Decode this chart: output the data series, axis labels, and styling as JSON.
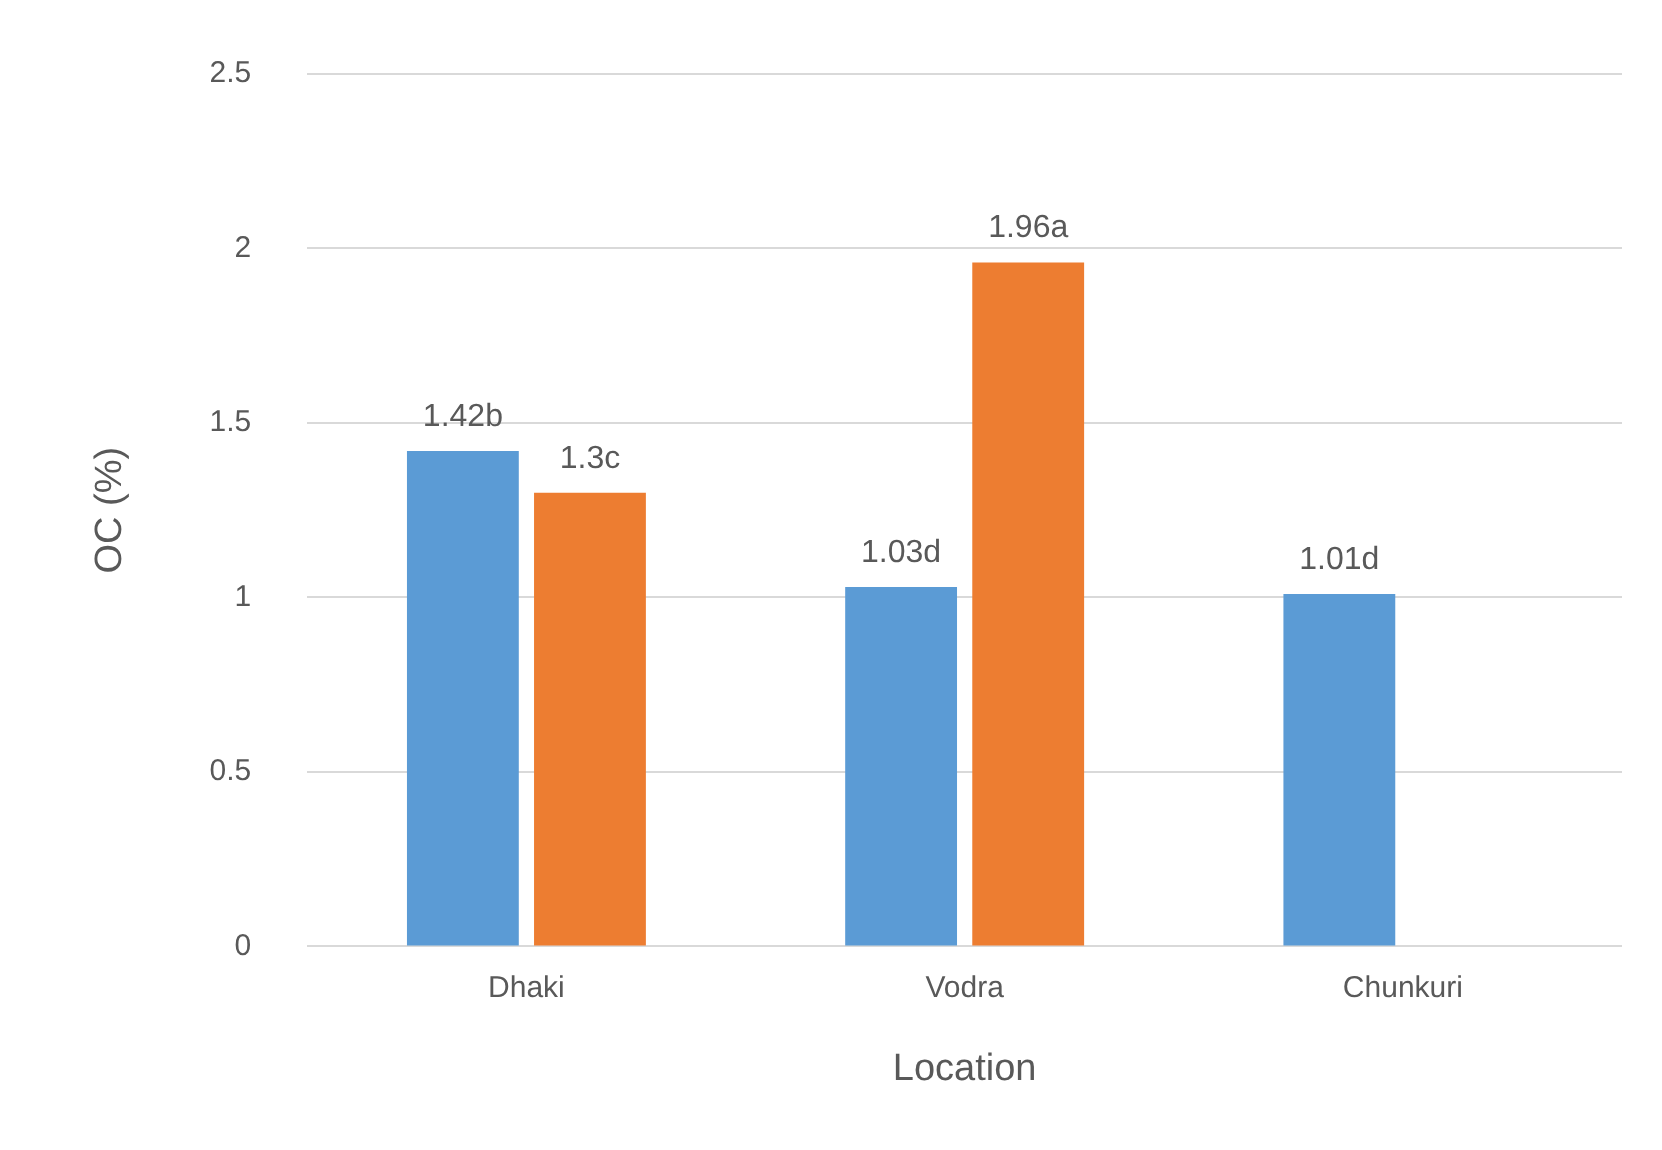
{
  "chart_data": {
    "type": "bar",
    "xlabel": "Location",
    "ylabel": "OC (%)",
    "categories": [
      "Dhaki",
      "Vodra",
      "Chunkuri"
    ],
    "series": [
      {
        "color": "#5b9bd5",
        "values": [
          1.42,
          1.03,
          1.01
        ],
        "value_labels": [
          "1.42b",
          "1.03d",
          "1.01d"
        ]
      },
      {
        "color": "#ed7d31",
        "values": [
          1.3,
          1.96,
          null
        ],
        "value_labels": [
          "1.3c",
          "1.96a",
          null
        ]
      }
    ],
    "ylim": [
      0,
      2.5
    ],
    "yticks": [
      0,
      0.5,
      1,
      1.5,
      2,
      2.5
    ],
    "grid": "y",
    "legend": false
  }
}
